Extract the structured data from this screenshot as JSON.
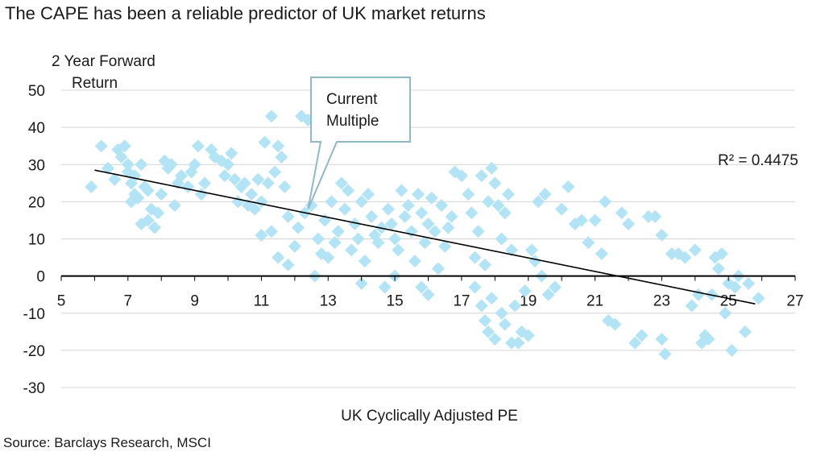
{
  "title": "The CAPE has been a reliable predictor of UK market returns",
  "source": "Source: Barclays Research, MSCI",
  "colors": {
    "point": "#b3e4f5",
    "grid": "#d4d4d4",
    "axis": "#000000",
    "trend": "#000000",
    "callout_border": "#8fb8c8"
  },
  "chart_data": {
    "type": "scatter",
    "title": "The CAPE has been a reliable predictor of UK market returns",
    "xlabel": "UK Cyclically Adjusted PE",
    "ylabel_lines": [
      "2 Year Forward",
      "Return"
    ],
    "xlim": [
      5,
      27
    ],
    "ylim": [
      -30,
      50
    ],
    "xticks": [
      5,
      7,
      9,
      11,
      13,
      15,
      17,
      19,
      21,
      23,
      25,
      27
    ],
    "yticks": [
      50,
      40,
      30,
      20,
      10,
      0,
      -10,
      -20,
      -30
    ],
    "grid": "horizontal",
    "r2_label": "R² = 0.4475",
    "annotation": {
      "lines": [
        "Current",
        "Multiple"
      ],
      "x": 12.4,
      "y": 18
    },
    "trendline": {
      "x": [
        6,
        25.8
      ],
      "y": [
        28.5,
        -7.5
      ]
    },
    "points": [
      [
        5.9,
        24
      ],
      [
        6.2,
        35
      ],
      [
        6.4,
        29
      ],
      [
        6.6,
        26
      ],
      [
        6.7,
        34
      ],
      [
        6.8,
        32
      ],
      [
        6.9,
        35
      ],
      [
        7.0,
        30
      ],
      [
        7.0,
        28
      ],
      [
        7.1,
        25
      ],
      [
        7.2,
        22
      ],
      [
        7.3,
        21
      ],
      [
        7.2,
        27
      ],
      [
        7.4,
        30
      ],
      [
        7.5,
        24
      ],
      [
        7.6,
        23
      ],
      [
        7.1,
        20
      ],
      [
        7.4,
        14
      ],
      [
        7.6,
        15
      ],
      [
        7.8,
        13
      ],
      [
        7.9,
        17
      ],
      [
        7.7,
        18
      ],
      [
        8.0,
        22
      ],
      [
        8.1,
        31
      ],
      [
        8.2,
        29
      ],
      [
        8.3,
        30
      ],
      [
        8.5,
        25
      ],
      [
        8.6,
        27
      ],
      [
        8.4,
        19
      ],
      [
        8.8,
        24
      ],
      [
        8.9,
        28
      ],
      [
        9.0,
        30
      ],
      [
        9.1,
        35
      ],
      [
        9.2,
        22
      ],
      [
        9.3,
        25
      ],
      [
        9.5,
        34
      ],
      [
        9.6,
        32
      ],
      [
        9.8,
        31
      ],
      [
        9.9,
        27
      ],
      [
        10.0,
        30
      ],
      [
        10.1,
        33
      ],
      [
        10.2,
        26
      ],
      [
        10.3,
        20
      ],
      [
        10.4,
        24
      ],
      [
        10.5,
        25
      ],
      [
        10.6,
        19
      ],
      [
        10.7,
        22
      ],
      [
        10.8,
        18
      ],
      [
        10.9,
        26
      ],
      [
        11.0,
        20
      ],
      [
        11.1,
        36
      ],
      [
        11.2,
        25
      ],
      [
        11.3,
        43
      ],
      [
        11.4,
        28
      ],
      [
        11.5,
        35
      ],
      [
        11.6,
        32
      ],
      [
        11.7,
        24
      ],
      [
        11.8,
        16
      ],
      [
        11.0,
        11
      ],
      [
        11.3,
        12
      ],
      [
        11.5,
        5
      ],
      [
        11.8,
        3
      ],
      [
        12.0,
        8
      ],
      [
        12.1,
        13
      ],
      [
        12.2,
        43
      ],
      [
        12.4,
        42
      ],
      [
        12.3,
        17
      ],
      [
        12.5,
        19
      ],
      [
        12.6,
        0
      ],
      [
        12.7,
        10
      ],
      [
        12.8,
        6
      ],
      [
        12.9,
        15
      ],
      [
        13.0,
        5
      ],
      [
        13.1,
        20
      ],
      [
        13.2,
        9
      ],
      [
        13.3,
        12
      ],
      [
        13.4,
        25
      ],
      [
        13.5,
        18
      ],
      [
        13.6,
        23
      ],
      [
        13.7,
        7
      ],
      [
        13.8,
        14
      ],
      [
        13.9,
        10
      ],
      [
        14.0,
        20
      ],
      [
        14.1,
        4
      ],
      [
        14.2,
        22
      ],
      [
        14.3,
        16
      ],
      [
        14.4,
        11
      ],
      [
        14.5,
        9
      ],
      [
        14.6,
        13
      ],
      [
        14.7,
        -3
      ],
      [
        14.8,
        18
      ],
      [
        14.9,
        14
      ],
      [
        15.0,
        10
      ],
      [
        15.1,
        7
      ],
      [
        15.2,
        23
      ],
      [
        15.3,
        16
      ],
      [
        15.4,
        19
      ],
      [
        15.5,
        12
      ],
      [
        15.6,
        4
      ],
      [
        15.7,
        22
      ],
      [
        15.8,
        17
      ],
      [
        15.9,
        9
      ],
      [
        16.0,
        14
      ],
      [
        16.1,
        21
      ],
      [
        16.2,
        12
      ],
      [
        16.3,
        2
      ],
      [
        16.4,
        19
      ],
      [
        16.5,
        8
      ],
      [
        16.6,
        13
      ],
      [
        16.7,
        16
      ],
      [
        14.0,
        -2
      ],
      [
        15.0,
        0
      ],
      [
        15.8,
        -3
      ],
      [
        16.0,
        -5
      ],
      [
        16.8,
        28
      ],
      [
        17.0,
        27
      ],
      [
        17.2,
        22
      ],
      [
        17.3,
        17
      ],
      [
        17.4,
        5
      ],
      [
        17.5,
        12
      ],
      [
        17.6,
        27
      ],
      [
        17.7,
        3
      ],
      [
        17.8,
        20
      ],
      [
        17.9,
        29
      ],
      [
        18.0,
        25
      ],
      [
        18.1,
        19
      ],
      [
        18.2,
        10
      ],
      [
        18.3,
        17
      ],
      [
        18.4,
        22
      ],
      [
        18.5,
        7
      ],
      [
        17.4,
        -3
      ],
      [
        17.6,
        -8
      ],
      [
        17.7,
        -12
      ],
      [
        17.8,
        -15
      ],
      [
        17.9,
        -6
      ],
      [
        18.0,
        -17
      ],
      [
        18.2,
        -10
      ],
      [
        18.3,
        -13
      ],
      [
        18.5,
        -18
      ],
      [
        18.6,
        -8
      ],
      [
        18.7,
        -18
      ],
      [
        18.8,
        -15
      ],
      [
        18.9,
        -4
      ],
      [
        19.0,
        -16
      ],
      [
        19.1,
        7
      ],
      [
        19.2,
        4
      ],
      [
        19.3,
        20
      ],
      [
        19.4,
        0
      ],
      [
        19.5,
        22
      ],
      [
        19.6,
        -5
      ],
      [
        19.8,
        -3
      ],
      [
        20.0,
        18
      ],
      [
        20.2,
        24
      ],
      [
        20.4,
        14
      ],
      [
        20.6,
        15
      ],
      [
        20.8,
        9
      ],
      [
        21.0,
        15
      ],
      [
        21.2,
        6
      ],
      [
        21.3,
        20
      ],
      [
        21.4,
        -12
      ],
      [
        21.6,
        -13
      ],
      [
        21.8,
        17
      ],
      [
        22.0,
        14
      ],
      [
        22.2,
        -18
      ],
      [
        22.4,
        -16
      ],
      [
        22.6,
        16
      ],
      [
        22.8,
        16
      ],
      [
        23.0,
        11
      ],
      [
        23.0,
        -17
      ],
      [
        23.1,
        -21
      ],
      [
        23.3,
        6
      ],
      [
        23.5,
        6
      ],
      [
        23.7,
        5
      ],
      [
        23.9,
        -8
      ],
      [
        24.0,
        7
      ],
      [
        24.1,
        -5
      ],
      [
        24.2,
        -18
      ],
      [
        24.3,
        -16
      ],
      [
        24.4,
        -17
      ],
      [
        24.5,
        -5
      ],
      [
        24.6,
        5
      ],
      [
        24.7,
        2
      ],
      [
        24.8,
        6
      ],
      [
        24.9,
        -10
      ],
      [
        25.0,
        -2
      ],
      [
        25.1,
        -20
      ],
      [
        25.2,
        -3
      ],
      [
        25.3,
        0
      ],
      [
        25.5,
        -15
      ],
      [
        25.6,
        -2
      ],
      [
        25.9,
        -6
      ]
    ]
  }
}
